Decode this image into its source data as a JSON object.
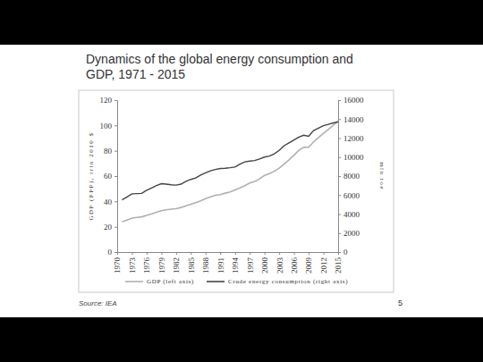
{
  "chart_data": {
    "type": "line",
    "title": "Dynamics of the global energy consumption and GDP, 1971 - 2015",
    "y_label": "GDP (PPP), trln 2010 $",
    "y2_label": "mln toe",
    "x": [
      1971,
      1972,
      1973,
      1974,
      1975,
      1976,
      1977,
      1978,
      1979,
      1980,
      1981,
      1982,
      1983,
      1984,
      1985,
      1986,
      1987,
      1988,
      1989,
      1990,
      1991,
      1992,
      1993,
      1994,
      1995,
      1996,
      1997,
      1998,
      1999,
      2000,
      2001,
      2002,
      2003,
      2004,
      2005,
      2006,
      2007,
      2008,
      2009,
      2010,
      2011,
      2012,
      2013,
      2014,
      2015
    ],
    "xlim": [
      1970,
      2015
    ],
    "xticks": [
      1970,
      1973,
      1976,
      1979,
      1982,
      1985,
      1988,
      1991,
      1994,
      1997,
      2000,
      2003,
      2006,
      2009,
      2012,
      2015
    ],
    "ylim": [
      0,
      120
    ],
    "yticks": [
      0,
      20,
      40,
      60,
      80,
      100,
      120
    ],
    "y2lim": [
      0,
      16000
    ],
    "y2ticks": [
      0,
      2000,
      4000,
      6000,
      8000,
      10000,
      12000,
      14000,
      16000
    ],
    "grid": false,
    "legend": "bottom",
    "series": [
      {
        "name": "GDP (left axis)",
        "color": "#b0b0b0",
        "values": [
          24,
          25.2,
          26.8,
          27.3,
          27.8,
          29,
          30.2,
          31.4,
          32.6,
          33.3,
          33.9,
          34.2,
          35.2,
          36.6,
          37.8,
          39,
          40.4,
          42.1,
          43.6,
          44.8,
          45.4,
          46.5,
          47.4,
          49,
          50.6,
          52.4,
          54.5,
          55.8,
          57.8,
          60.5,
          62,
          63.8,
          66.2,
          69.5,
          72.8,
          76.5,
          80.4,
          82.7,
          82.8,
          87,
          90.5,
          93.6,
          96.8,
          100.2,
          103.5
        ]
      },
      {
        "name": "Crude energy consumption (right axis)",
        "color": "#444444",
        "axis": "y2",
        "values": [
          5500,
          5800,
          6130,
          6150,
          6180,
          6500,
          6750,
          7000,
          7200,
          7150,
          7080,
          7050,
          7150,
          7450,
          7650,
          7800,
          8100,
          8350,
          8550,
          8700,
          8800,
          8830,
          8880,
          8950,
          9250,
          9500,
          9580,
          9630,
          9800,
          10000,
          10100,
          10350,
          10700,
          11200,
          11500,
          11800,
          12100,
          12300,
          12200,
          12800,
          13050,
          13300,
          13450,
          13600,
          13700
        ]
      }
    ]
  },
  "page": {
    "source": "Source: IEA",
    "page_number": 5
  }
}
